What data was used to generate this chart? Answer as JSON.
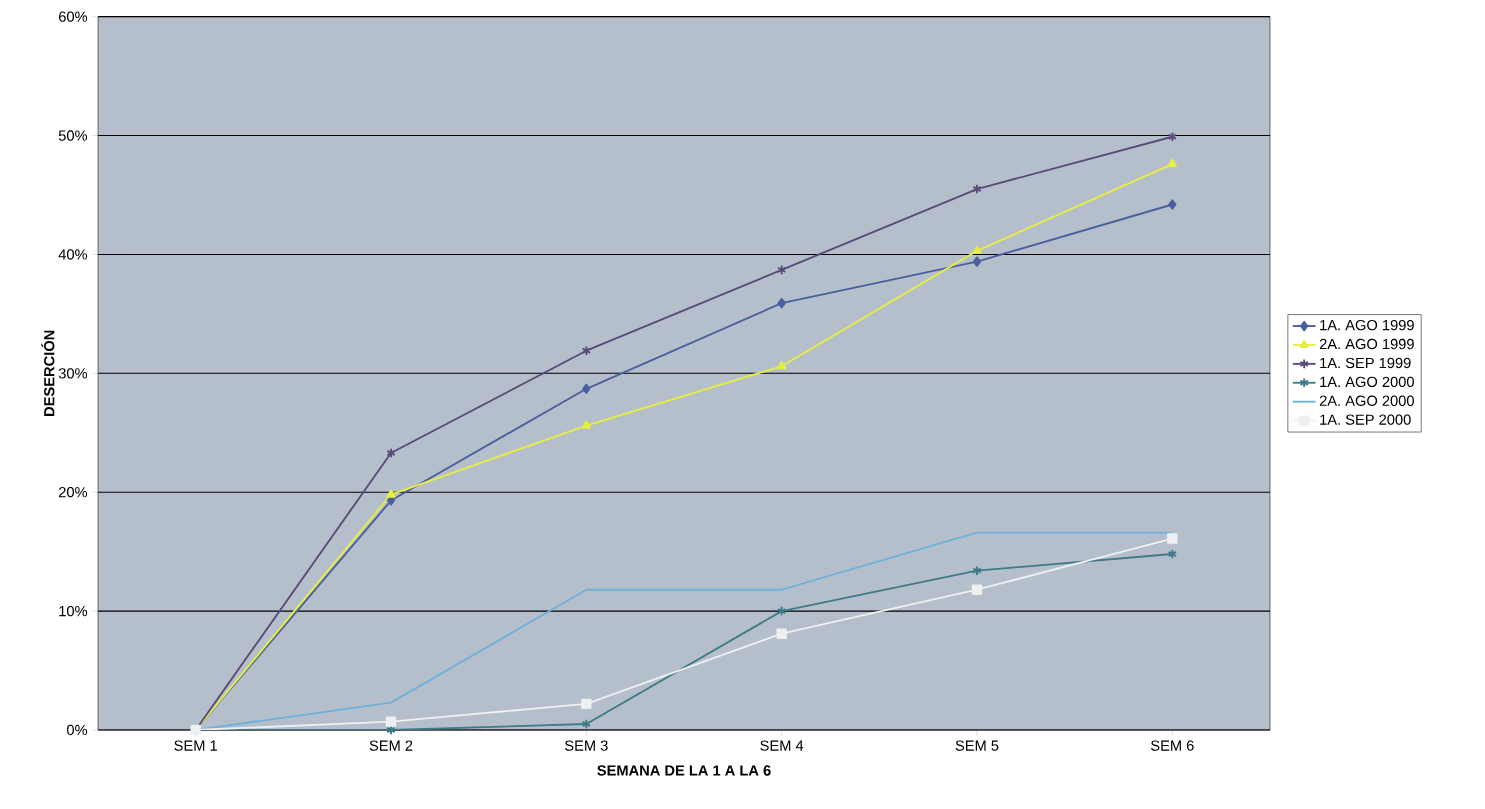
{
  "chart_data": {
    "type": "line",
    "xlabel": "SEMANA DE LA 1 A LA 6",
    "ylabel": "DESERCIÓN",
    "categories": [
      "SEM 1",
      "SEM 2",
      "SEM 3",
      "SEM 4",
      "SEM 5",
      "SEM 6"
    ],
    "ylim": [
      0,
      60
    ],
    "yticks": [
      {
        "value": 0,
        "label": "0%"
      },
      {
        "value": 10,
        "label": "10%"
      },
      {
        "value": 20,
        "label": "20%"
      },
      {
        "value": 30,
        "label": "30%"
      },
      {
        "value": 40,
        "label": "40%"
      },
      {
        "value": 50,
        "label": "50%"
      },
      {
        "value": 60,
        "label": "60%"
      }
    ],
    "grid": "y",
    "legend": "right",
    "line_style": "solid",
    "series": [
      {
        "name": "1A. AGO 1999",
        "color": "#4a5f9e",
        "marker": "diamond",
        "values": [
          0,
          19.3,
          28.7,
          35.9,
          39.4,
          44.2
        ]
      },
      {
        "name": "2A. AGO 1999",
        "color": "#e6ee40",
        "marker": "triangle",
        "values": [
          0,
          19.8,
          25.6,
          30.6,
          40.3,
          47.6
        ]
      },
      {
        "name": "1A. SEP 1999",
        "color": "#5a4a78",
        "marker": "cross",
        "values": [
          0,
          23.3,
          31.9,
          38.7,
          45.5,
          49.9
        ]
      },
      {
        "name": "1A. AGO 2000",
        "color": "#3f7a88",
        "marker": "cross",
        "values": [
          0,
          0,
          0.5,
          10,
          13.4,
          14.8
        ]
      },
      {
        "name": "2A. AGO 2000",
        "color": "#6fb0d8",
        "marker": "none",
        "values": [
          0,
          2.3,
          11.8,
          11.8,
          16.6,
          16.6
        ]
      },
      {
        "name": "1A. SEP 2000",
        "color": "#eef0f0",
        "marker": "square",
        "values": [
          0,
          0.7,
          2.2,
          8.1,
          11.8,
          16.1
        ]
      }
    ]
  }
}
